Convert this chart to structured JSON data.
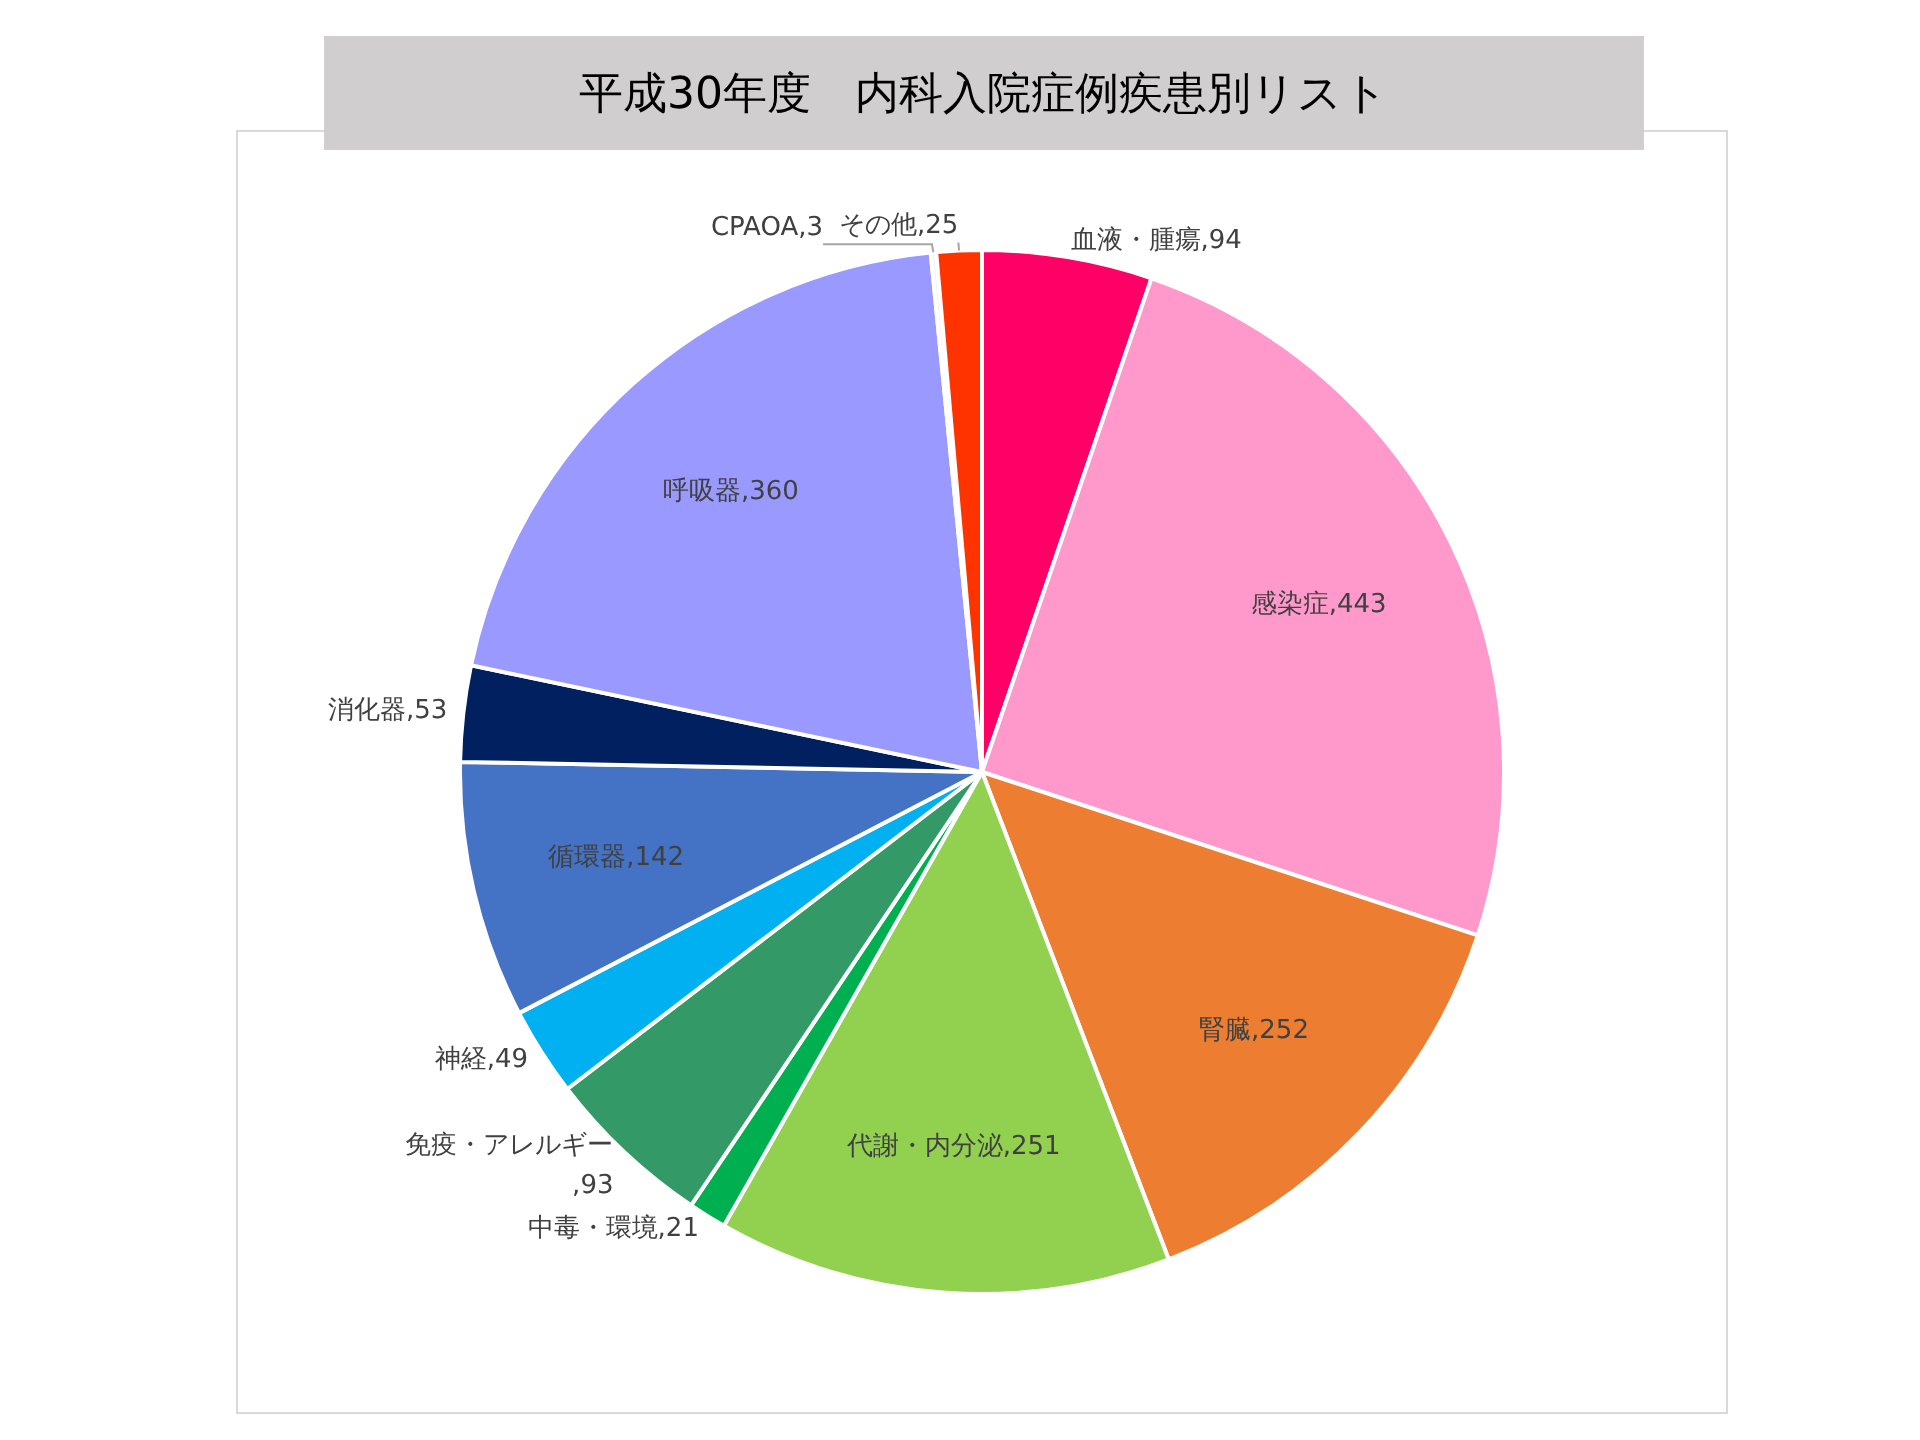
{
  "chart_data": {
    "type": "pie",
    "title": "平成30年度　内科入院症例疾患別リスト",
    "categories": [
      "血液・腫瘍",
      "感染症",
      "腎臓",
      "代謝・内分泌",
      "中毒・環境",
      "免疫・アレルギー",
      "神経",
      "循環器",
      "消化器",
      "呼吸器",
      "CPAOA",
      "その他"
    ],
    "values": [
      94,
      443,
      252,
      251,
      21,
      93,
      49,
      142,
      53,
      360,
      3,
      25
    ],
    "colors": [
      "#ff0066",
      "#ff99cc",
      "#ed7d31",
      "#92d050",
      "#00b050",
      "#339966",
      "#00b0f0",
      "#4472c4",
      "#002060",
      "#9999ff",
      "#f2f2f2",
      "#ff3300"
    ],
    "value_labels": [
      ",94",
      ",443",
      ",252",
      ",251",
      ",21",
      ",93",
      ",49",
      ",142",
      ",53",
      ",360",
      ",3",
      ",25"
    ]
  }
}
